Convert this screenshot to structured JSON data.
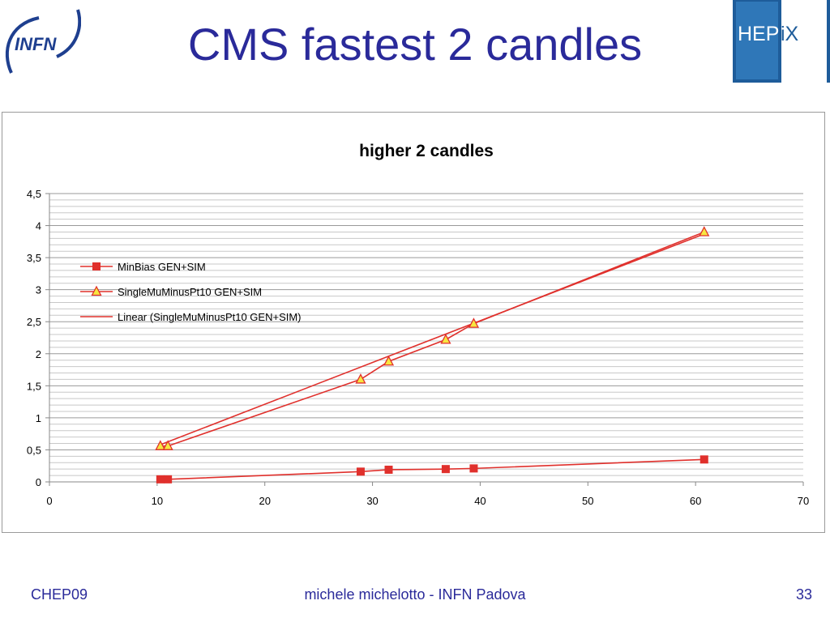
{
  "slide": {
    "title": "CMS fastest 2 candles",
    "logo_left_text": "INFN",
    "logo_right_text_main": "HEP",
    "logo_right_text_accent": "iX"
  },
  "footer": {
    "left": "CHEP09",
    "center": "michele michelotto - INFN Padova",
    "right": "33"
  },
  "colors": {
    "title": "#2a2a9a",
    "series": "#e0302c",
    "triangle_fill": "#f7e640",
    "hepix_blue": "#1e5c9a"
  },
  "chart_data": {
    "type": "scatter",
    "title": "higher 2 candles",
    "xlabel": "",
    "ylabel": "",
    "xlim": [
      0,
      70
    ],
    "ylim": [
      0,
      4.5
    ],
    "x_ticks": [
      "0",
      "10",
      "20",
      "30",
      "40",
      "50",
      "60",
      "70"
    ],
    "y_ticks": [
      "0",
      "0,5",
      "1",
      "1,5",
      "2",
      "2,5",
      "3",
      "3,5",
      "4",
      "4,5"
    ],
    "grid": true,
    "legend_position": "upper-left",
    "series": [
      {
        "name": "MinBias GEN+SIM",
        "marker": "square",
        "x": [
          10.3,
          11.0,
          28.9,
          31.5,
          36.8,
          39.4,
          60.8
        ],
        "y": [
          0.04,
          0.04,
          0.16,
          0.19,
          0.2,
          0.21,
          0.35
        ]
      },
      {
        "name": "SingleMuMinusPt10 GEN+SIM",
        "marker": "triangle",
        "x": [
          10.3,
          11.0,
          28.9,
          31.5,
          36.8,
          39.4,
          60.8
        ],
        "y": [
          0.56,
          0.56,
          1.6,
          1.88,
          2.22,
          2.47,
          3.9
        ]
      },
      {
        "name": "Linear (SingleMuMinusPt10 GEN+SIM)",
        "marker": "none",
        "line": "trend",
        "x": [
          10.3,
          60.8
        ],
        "y": [
          0.58,
          3.87
        ]
      }
    ]
  }
}
